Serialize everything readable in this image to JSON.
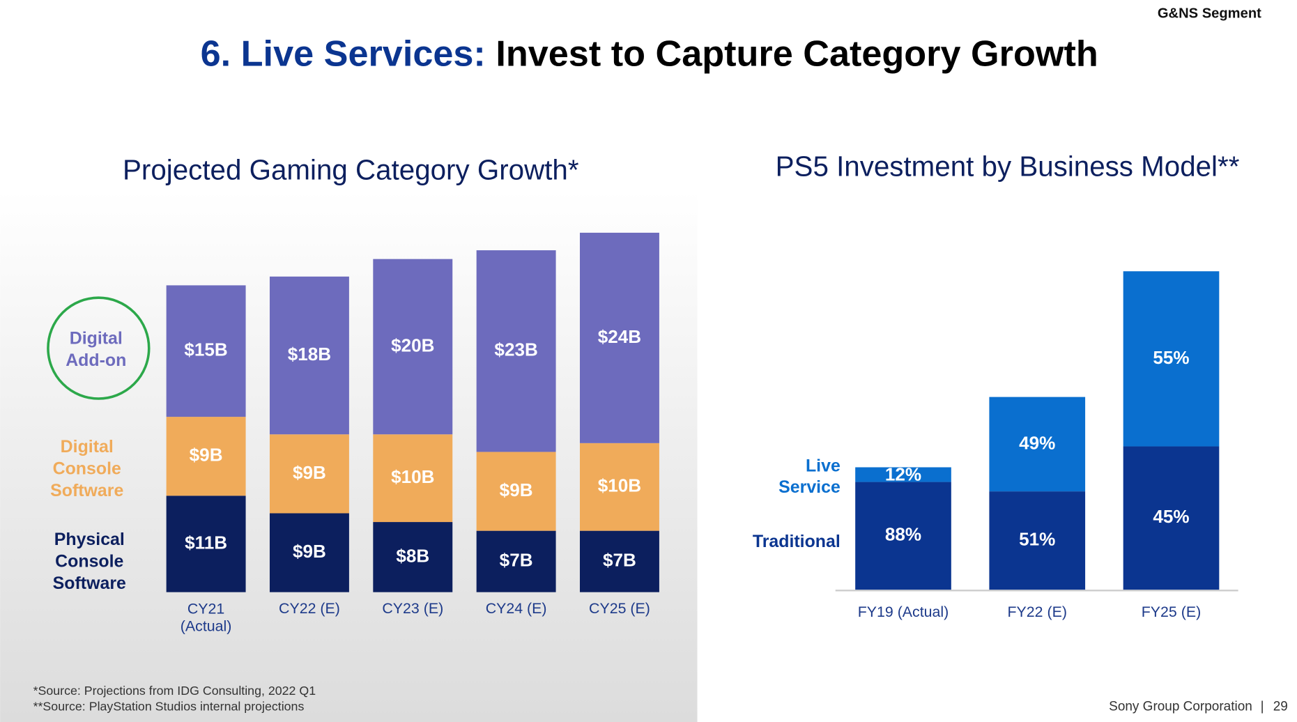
{
  "page": {
    "segment": "G&NS Segment",
    "title_lead": "6. Live Services:",
    "title_rest": "Invest to Capture Category Growth",
    "footnotes": [
      "*Source: Projections from IDG Consulting, 2022 Q1",
      "**Source: PlayStation Studios internal projections"
    ],
    "footer": "Sony Group Corporation",
    "page_number": "29"
  },
  "chart_data": [
    {
      "type": "stacked_bar",
      "title": "Projected Gaming Category Growth*",
      "categories": [
        "CY21 (Actual)",
        "CY22 (E)",
        "CY23 (E)",
        "CY24 (E)",
        "CY25 (E)"
      ],
      "series": [
        {
          "name": "Physical Console Software",
          "color": "#0c1f5e",
          "values": [
            11,
            9,
            8,
            7,
            7
          ],
          "value_labels": [
            "$11B",
            "$9B",
            "$8B",
            "$7B",
            "$7B"
          ]
        },
        {
          "name": "Digital Console Software",
          "color": "#f0ab5a",
          "values": [
            9,
            9,
            10,
            9,
            10
          ],
          "value_labels": [
            "$9B",
            "$9B",
            "$10B",
            "$9B",
            "$10B"
          ]
        },
        {
          "name": "Digital Add-on",
          "color": "#6d6bbd",
          "values": [
            15,
            18,
            20,
            23,
            24
          ],
          "value_labels": [
            "$15B",
            "$18B",
            "$20B",
            "$23B",
            "$24B"
          ]
        }
      ]
    },
    {
      "type": "stacked_bar",
      "title": "PS5 Investment by Business Model**",
      "categories": [
        "FY19 (Actual)",
        "FY22 (E)",
        "FY25 (E)"
      ],
      "series": [
        {
          "name": "Traditional",
          "color": "#0b3590",
          "values": [
            88,
            51,
            45
          ],
          "value_labels": [
            "88%",
            "51%",
            "45%"
          ]
        },
        {
          "name": "Live Service",
          "color": "#0a6fcf",
          "values": [
            12,
            49,
            55
          ],
          "value_labels": [
            "12%",
            "49%",
            "55%"
          ]
        }
      ]
    }
  ]
}
